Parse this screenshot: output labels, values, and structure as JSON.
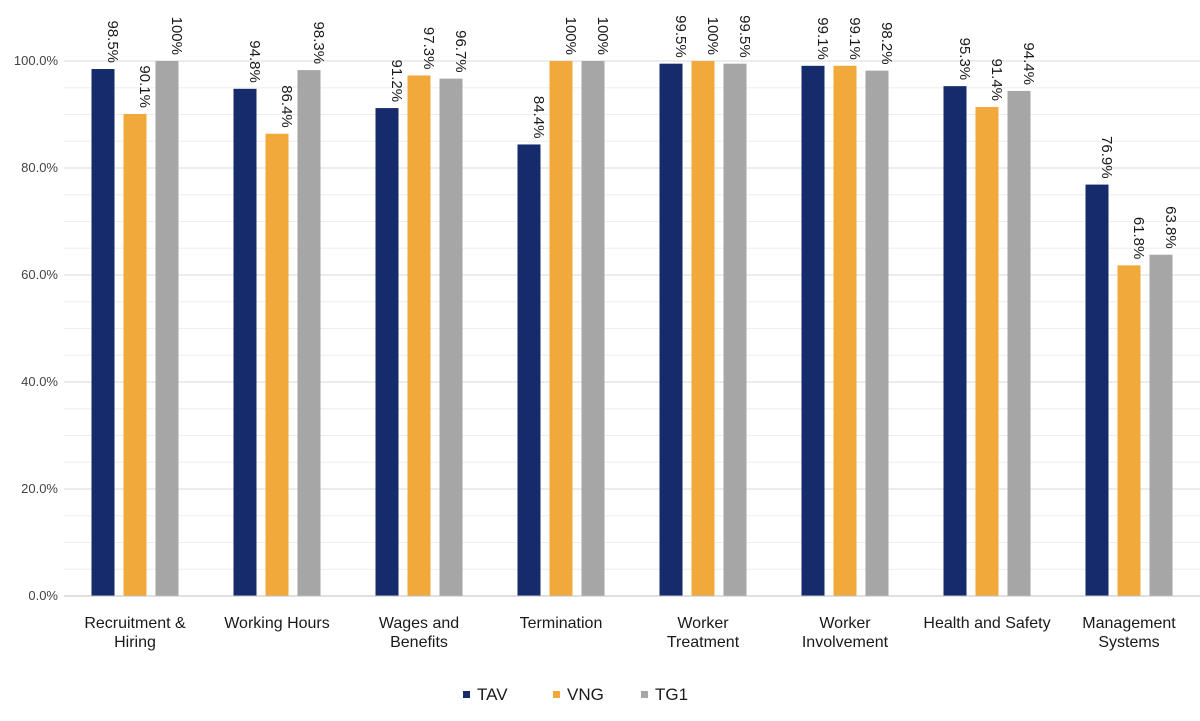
{
  "chart_data": {
    "type": "bar",
    "categories": [
      [
        "Recruitment &",
        "Hiring"
      ],
      [
        "Working Hours"
      ],
      [
        "Wages and",
        "Benefits"
      ],
      [
        "Termination"
      ],
      [
        "Worker",
        "Treatment"
      ],
      [
        "Worker",
        "Involvement"
      ],
      [
        "Health and Safety"
      ],
      [
        "Management",
        "Systems"
      ]
    ],
    "series": [
      {
        "name": "TAV",
        "color": "#152b6b",
        "values": [
          98.5,
          94.8,
          91.2,
          84.4,
          99.5,
          99.1,
          95.3,
          76.9
        ],
        "labels": [
          "98.5%",
          "94.8%",
          "91.2%",
          "84.4%",
          "99.5%",
          "99.1%",
          "95.3%",
          "76.9%"
        ]
      },
      {
        "name": "VNG",
        "color": "#f0a93a",
        "values": [
          90.1,
          86.4,
          97.3,
          100,
          100,
          99.1,
          91.4,
          61.8
        ],
        "labels": [
          "90.1%",
          "86.4%",
          "97.3%",
          "100%",
          "100%",
          "99.1%",
          "91.4%",
          "61.8%"
        ]
      },
      {
        "name": "TG1",
        "color": "#a6a6a6",
        "values": [
          100,
          98.3,
          96.7,
          100,
          99.5,
          98.2,
          94.4,
          63.8
        ],
        "labels": [
          "100%",
          "98.3%",
          "96.7%",
          "100%",
          "99.5%",
          "98.2%",
          "94.4%",
          "63.8%"
        ]
      }
    ],
    "ylim": [
      0,
      100
    ],
    "yticks": [
      0,
      20,
      40,
      60,
      80,
      100
    ],
    "ytick_labels": [
      "0.0%",
      "20.0%",
      "40.0%",
      "60.0%",
      "80.0%",
      "100.0%"
    ],
    "grid": true,
    "legend_position": "bottom-center"
  }
}
